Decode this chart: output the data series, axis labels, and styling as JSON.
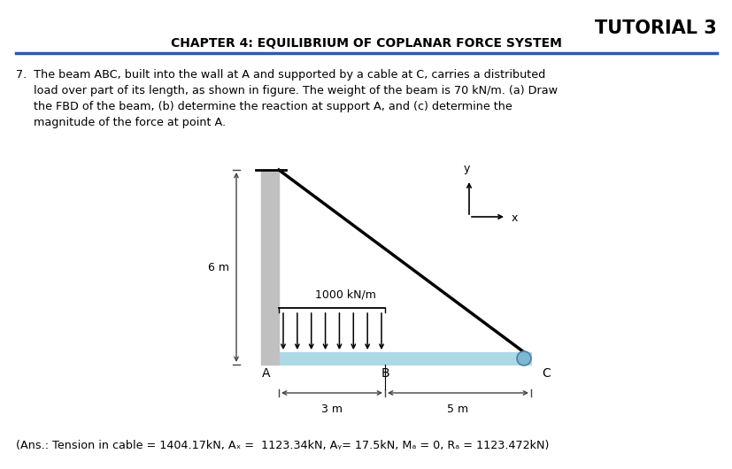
{
  "title": "TUTORIAL 3",
  "subtitle": "CHAPTER 4: EQUILIBRIUM OF COPLANAR FORCE SYSTEM",
  "problem_line1": "7.  The beam ABC, built into the wall at A and supported by a cable at C, carries a distributed",
  "problem_line2": "     load over part of its length, as shown in figure. The weight of the beam is 70 kN/m. (a) Draw",
  "problem_line3": "     the FBD of the beam, (b) determine the reaction at support A, and (c) determine the",
  "problem_line4": "     magnitude of the force at point A.",
  "answer_text": "(Ans.: Tension in cable = 1404.17kN, Aₓ =  1123.34kN, Aᵧ= 17.5kN, Mₐ = 0, Rₐ = 1123.472kN)",
  "bg_color": "#ffffff",
  "title_color": "#000000",
  "header_line_color": "#2a5ca8",
  "wall_color": "#c0c0c0",
  "beam_color": "#add8e6",
  "beam_edge_color": "#6090c0",
  "cable_color": "#000000",
  "dim_color": "#444444",
  "load_label": "1000 kN/m",
  "dim_6m": "6 m",
  "dim_3m": "3 m",
  "dim_5m": "5 m",
  "label_A": "A",
  "label_B": "B",
  "label_C": "C",
  "label_x": "x",
  "label_y": "y",
  "n_load_arrows": 8
}
